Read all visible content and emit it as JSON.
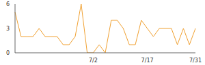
{
  "chart_data": {
    "type": "line",
    "categories": [
      null,
      null,
      null,
      null,
      null,
      null,
      null,
      null,
      null,
      null,
      null,
      null,
      null,
      "7/2",
      null,
      null,
      null,
      null,
      null,
      null,
      null,
      null,
      "7/17",
      null,
      null,
      null,
      null,
      null,
      null,
      null,
      "7/31"
    ],
    "values": [
      5,
      2,
      2,
      2,
      3,
      2,
      2,
      2,
      1,
      1,
      2,
      6,
      0,
      0,
      1,
      0,
      4,
      4,
      3,
      1,
      1,
      4,
      3,
      2,
      3,
      3,
      3,
      1,
      3,
      1,
      3
    ],
    "color": "#f0a030",
    "ylim": [
      0,
      6
    ],
    "yticks": [
      0,
      3,
      6
    ],
    "grid": false
  }
}
